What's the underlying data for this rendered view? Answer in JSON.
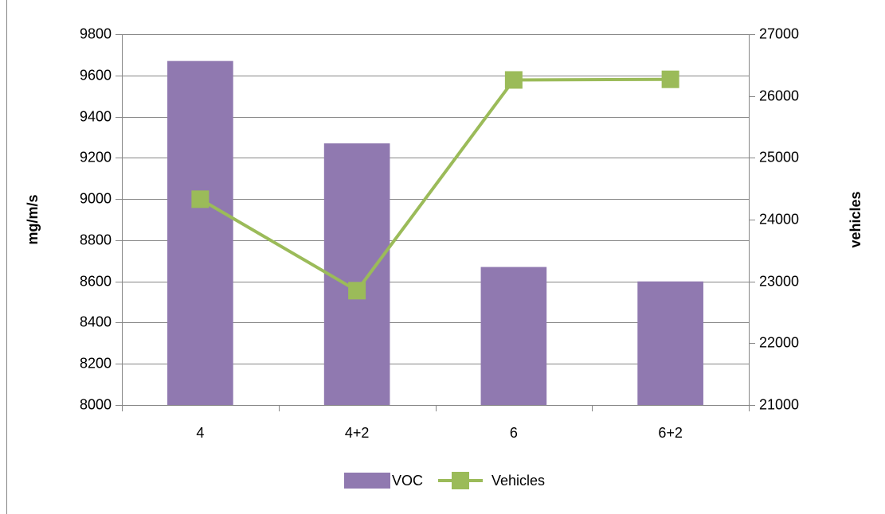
{
  "chart_data": {
    "type": "bar-line",
    "categories": [
      "4",
      "4+2",
      "6",
      "6+2"
    ],
    "series": [
      {
        "name": "VOC",
        "type": "bar",
        "color": "#9079b0",
        "values": [
          9670,
          9270,
          8670,
          8600
        ]
      },
      {
        "name": "Vehicles",
        "type": "line",
        "axis": "y2",
        "color": "#9bbb59",
        "values": [
          24330,
          22850,
          26260,
          26270
        ]
      }
    ],
    "ylabel": "mg/m/s",
    "y2label": "vehicles",
    "ylim": [
      8000,
      9800
    ],
    "yticks": [
      8000,
      8200,
      8400,
      8600,
      8800,
      9000,
      9200,
      9400,
      9600,
      9800
    ],
    "y2lim": [
      21000,
      27000
    ],
    "y2ticks": [
      21000,
      22000,
      23000,
      24000,
      25000,
      26000,
      27000
    ],
    "grid": true,
    "legend": "bottom"
  }
}
